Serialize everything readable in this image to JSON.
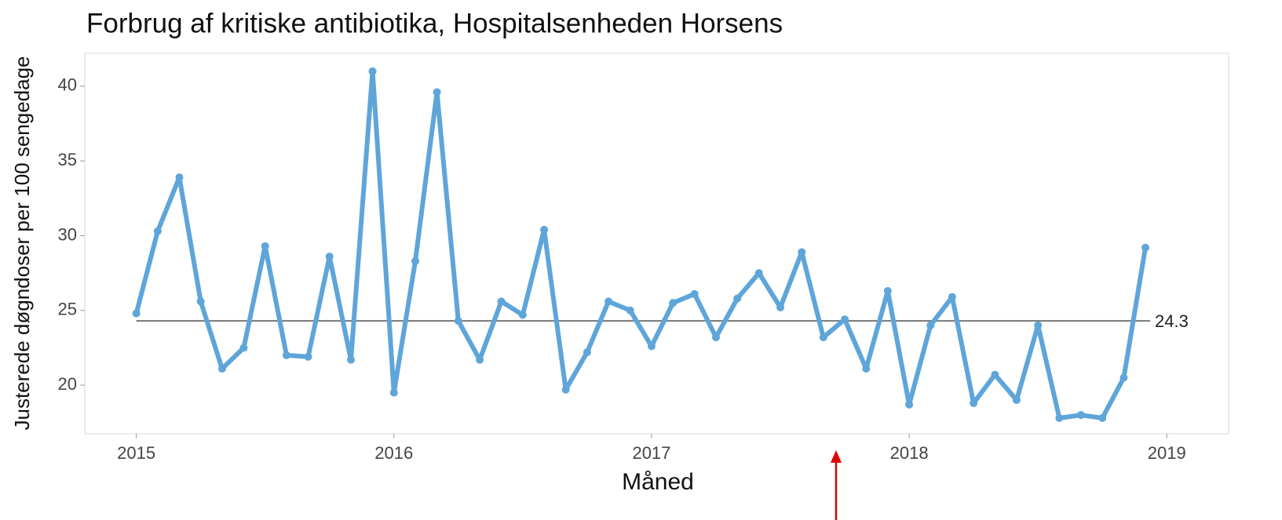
{
  "chart_data": {
    "type": "line",
    "title": "Forbrug af kritiske antibiotika, Hospitalsenheden Horsens",
    "xlabel": "Måned",
    "ylabel": "Justerede døgndoser per 100 sengedage",
    "x": [
      2015.0,
      2015.083,
      2015.167,
      2015.25,
      2015.333,
      2015.417,
      2015.5,
      2015.583,
      2015.667,
      2015.75,
      2015.833,
      2015.917,
      2016.0,
      2016.083,
      2016.167,
      2016.25,
      2016.333,
      2016.417,
      2016.5,
      2016.583,
      2016.667,
      2016.75,
      2016.833,
      2016.917,
      2017.0,
      2017.083,
      2017.167,
      2017.25,
      2017.333,
      2017.417,
      2017.5,
      2017.583,
      2017.667,
      2017.75,
      2017.833,
      2017.917,
      2018.0,
      2018.083,
      2018.167,
      2018.25,
      2018.333,
      2018.417,
      2018.5,
      2018.583,
      2018.667,
      2018.75,
      2018.833,
      2018.917
    ],
    "series": [
      {
        "color": "#5ea5d9",
        "values": [
          24.8,
          30.3,
          33.9,
          25.6,
          21.1,
          22.5,
          29.3,
          22.0,
          21.9,
          28.6,
          21.7,
          41.0,
          19.5,
          28.3,
          39.6,
          24.3,
          21.7,
          25.6,
          24.7,
          30.4,
          19.7,
          22.2,
          25.6,
          25.0,
          22.6,
          25.5,
          26.1,
          23.2,
          25.8,
          27.5,
          25.2,
          28.9,
          23.2,
          24.4,
          21.1,
          26.3,
          18.7,
          24.0,
          25.9,
          18.8,
          20.7,
          19.0,
          24.0,
          17.8,
          18.0,
          17.8,
          20.5,
          29.2
        ]
      }
    ],
    "reference_line": {
      "value": 24.3,
      "color": "#777777"
    },
    "xlim": [
      2014.8,
      2019.24
    ],
    "xticks": [
      2015,
      2016,
      2017,
      2018,
      2019
    ],
    "ylim": [
      16.75,
      42.2
    ],
    "yticks": [
      20,
      25,
      30,
      35,
      40
    ]
  }
}
